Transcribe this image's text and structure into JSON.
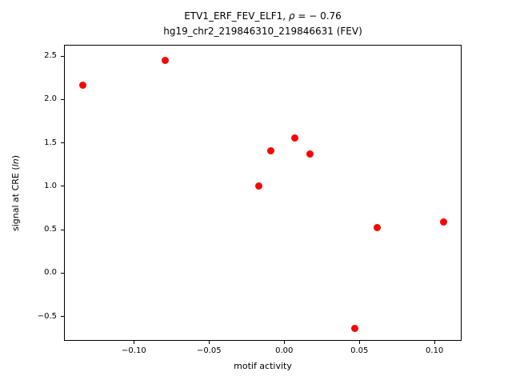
{
  "figure": {
    "background_color": "#ffffff",
    "text_color": "#000000"
  },
  "title": {
    "line1_prefix": "ETV1_ERF_FEV_ELF1, ",
    "line1_rho": "ρ",
    "line1_suffix": " = − 0.76",
    "line2": "hg19_chr2_219846310_219846631 (FEV)"
  },
  "axes": {
    "xlabel": "motif activity",
    "ylabel_prefix": "signal at CRE (",
    "ylabel_italic": "ln",
    "ylabel_suffix": ")"
  },
  "chart_data": {
    "type": "scatter",
    "title": "ETV1_ERF_FEV_ELF1, ρ = − 0.76",
    "subtitle": "hg19_chr2_219846310_219846631 (FEV)",
    "xlabel": "motif activity",
    "ylabel": "signal at CRE (ln)",
    "marker_color": "#ff0000",
    "marker_shape": "circle",
    "grid": false,
    "legend": "none",
    "xlim": [
      -0.1465,
      0.118
    ],
    "ylim": [
      -0.78,
      2.63
    ],
    "xticks": [
      -0.1,
      -0.05,
      0.0,
      0.05,
      0.1
    ],
    "xtick_labels": [
      "−0.10",
      "−0.05",
      "0.00",
      "0.05",
      "0.10"
    ],
    "yticks": [
      2.5,
      2.0,
      1.5,
      1.0,
      0.5,
      0.0,
      -0.5
    ],
    "ytick_labels": [
      "2.5",
      "2.0",
      "1.5",
      "1.0",
      "0.5",
      "0.0",
      "−0.5"
    ],
    "points": [
      {
        "x": -0.134,
        "y": 2.16
      },
      {
        "x": -0.079,
        "y": 2.45
      },
      {
        "x": 0.007,
        "y": 1.56
      },
      {
        "x": -0.009,
        "y": 1.41
      },
      {
        "x": 0.017,
        "y": 1.37
      },
      {
        "x": -0.017,
        "y": 1.0
      },
      {
        "x": 0.062,
        "y": 0.52
      },
      {
        "x": 0.106,
        "y": 0.59
      },
      {
        "x": 0.047,
        "y": -0.64
      }
    ]
  }
}
